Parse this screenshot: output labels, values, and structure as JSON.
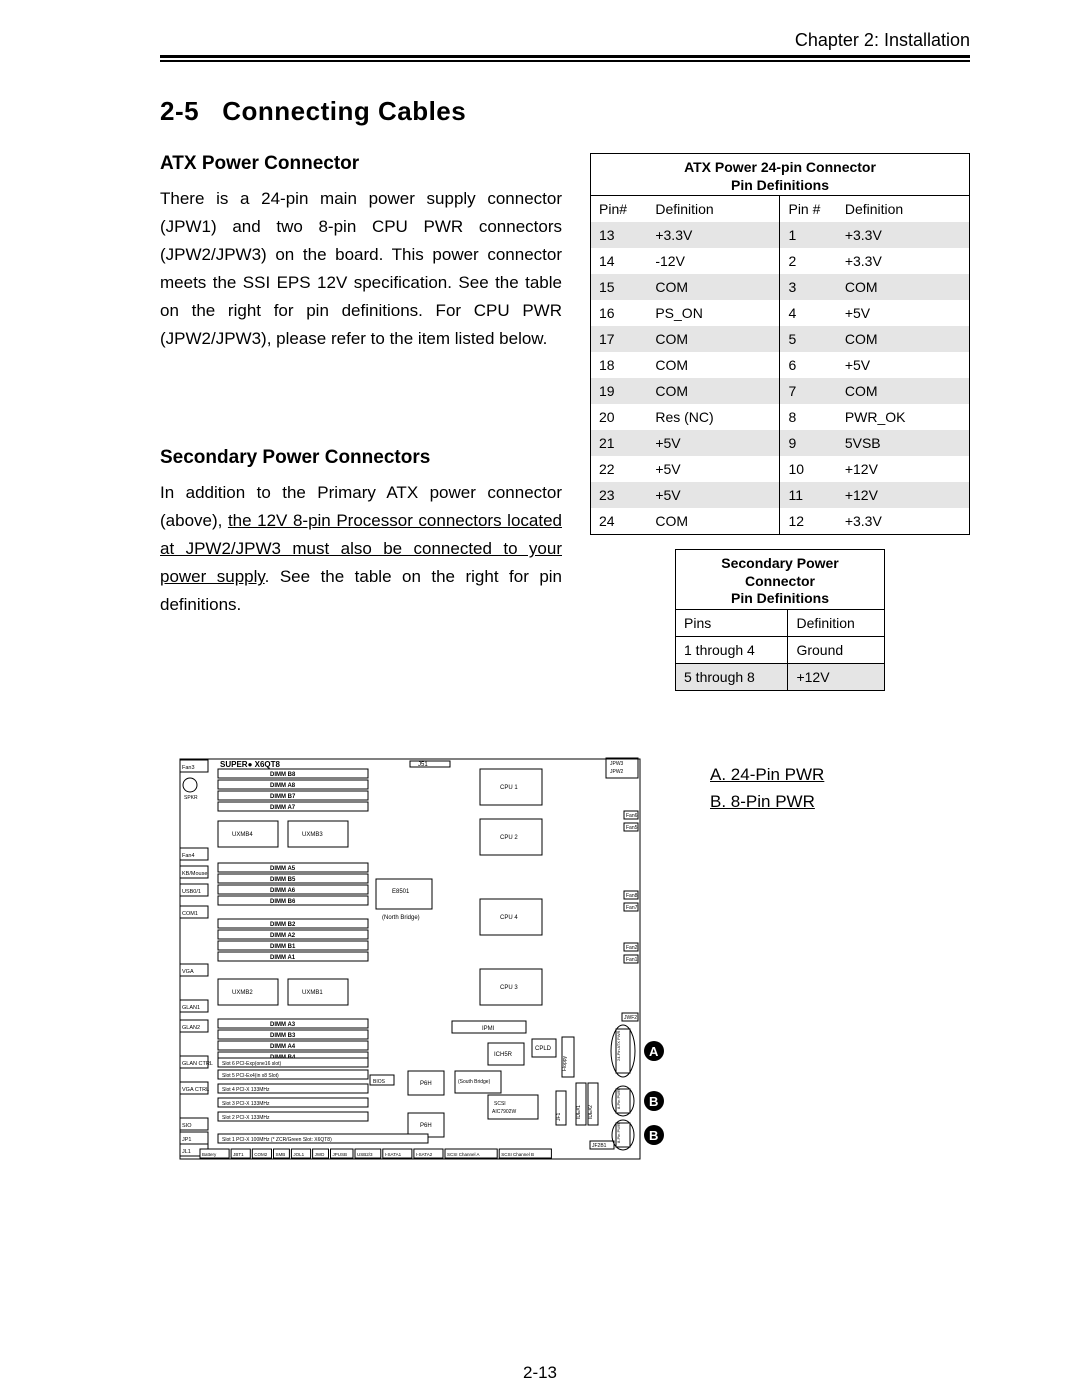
{
  "chapter": "Chapter 2: Installation",
  "section_num": "2-5",
  "section_title": "Connecting Cables",
  "page_number": "2-13",
  "atx": {
    "heading": "ATX Power Connector",
    "body": "There is a 24-pin main power supply connector (JPW1) and two 8-pin CPU PWR connectors (JPW2/JPW3) on the board. This power connector meets the SSI EPS 12V specification. See the table on the right for pin definitions. For CPU PWR (JPW2/JPW3), please refer to the item listed below."
  },
  "secondary": {
    "heading": "Secondary Power Connectors",
    "body_pre": "In addition to the Primary ATX power connector (above), ",
    "body_underlined": "the 12V 8-pin Processor connectors located at JPW2/JPW3 must also be connected to your power supply",
    "body_post": ".  See the table on the right for pin definitions."
  },
  "atx_table": {
    "title_l1": "ATX Power 24-pin Connector",
    "title_l2": "Pin Definitions",
    "headers": [
      "Pin#",
      "Definition",
      "Pin #",
      "Definition"
    ],
    "rows": [
      [
        "13",
        "+3.3V",
        "1",
        "+3.3V"
      ],
      [
        "14",
        "-12V",
        "2",
        "+3.3V"
      ],
      [
        "15",
        "COM",
        "3",
        "COM"
      ],
      [
        "16",
        "PS_ON",
        "4",
        "+5V"
      ],
      [
        "17",
        "COM",
        "5",
        "COM"
      ],
      [
        "18",
        "COM",
        "6",
        "+5V"
      ],
      [
        "19",
        "COM",
        "7",
        "COM"
      ],
      [
        "20",
        "Res (NC)",
        "8",
        "PWR_OK"
      ],
      [
        "21",
        "+5V",
        "9",
        "5VSB"
      ],
      [
        "22",
        "+5V",
        "10",
        "+12V"
      ],
      [
        "23",
        "+5V",
        "11",
        "+12V"
      ],
      [
        "24",
        "COM",
        "12",
        "+3.3V"
      ]
    ]
  },
  "sec_table": {
    "title_l1": "Secondary Power",
    "title_l2": "Connector",
    "title_l3": "Pin Definitions",
    "headers": [
      "Pins",
      "Definition"
    ],
    "rows": [
      [
        "1 through 4",
        "Ground"
      ],
      [
        "5 through 8",
        "+12V"
      ]
    ]
  },
  "legend": {
    "a": "A. 24-Pin PWR",
    "b": "B. 8-Pin PWR"
  },
  "board": {
    "model": "X6QT8",
    "brand_prefix": "SUPER",
    "dimm_top": [
      "DIMM B8",
      "DIMM A8",
      "DIMM B7",
      "DIMM A7"
    ],
    "dimm_mid1": [
      "DIMM A5",
      "DIMM B5",
      "DIMM A6",
      "DIMM B6"
    ],
    "dimm_mid2": [
      "DIMM B2",
      "DIMM A2",
      "DIMM B1",
      "DIMM A1"
    ],
    "dimm_bot": [
      "DIMM A3",
      "DIMM B3",
      "DIMM A4",
      "DIMM B4"
    ],
    "uxmb": [
      "UXMB4",
      "UXMB3",
      "UXMB2",
      "UXMB1"
    ],
    "cpu": [
      "CPU 1",
      "CPU 2",
      "CPU 4",
      "CPU 3"
    ],
    "chips": [
      "E8501",
      "(North Bridge)",
      "ICH5R",
      "(South Bridge)",
      "IPMI",
      "CPLD",
      "P6H",
      "P6H",
      "SCSI AIC7902W"
    ],
    "slots": [
      "Slot 6 PCI-Exp(one16 slot)",
      "Slot 5 PCI-Ex4(in x8 Slot)",
      "BIOS",
      "Slot 4 PCI-X 133MHz",
      "Slot 3 PCI-X 133MHz",
      "Slot 2 PCI-X 133MHz",
      "Slot 1 PCI-X 100MHz (* ZCR/Green Slot: X6QT8)"
    ],
    "left_ports": [
      "Fan3",
      "SPKR",
      "Fan4",
      "KB/Mouse",
      "USB0/1",
      "COM1",
      "VGA",
      "GLAN1",
      "GLAN2",
      "GLAN CTRL",
      "VGA CTRL",
      "SIO",
      "JP1",
      "JL1"
    ],
    "right_ports": [
      "JPW3",
      "JPW2",
      "Fan6",
      "Fan5",
      "Fan8",
      "Fan7",
      "Fan2",
      "Fan1",
      "JWF2",
      "Floppy",
      "IDE#1",
      "IDE#2",
      "JF1",
      "JF2B1"
    ],
    "bottom_row": [
      "Battery",
      "JBT1",
      "COM2",
      "SMB",
      "JOL1",
      "JWD",
      "JPUSB",
      "USB2/3",
      "I-SATA1",
      "I-SATA2",
      "SCSI Channel A",
      "SCSI Channel B"
    ],
    "misc": [
      "J51",
      "Fan8",
      "24-Pin ATX PWR",
      "8-Pin PWR",
      "8-Pin PWR"
    ],
    "callouts": [
      "A",
      "B",
      "B"
    ]
  }
}
